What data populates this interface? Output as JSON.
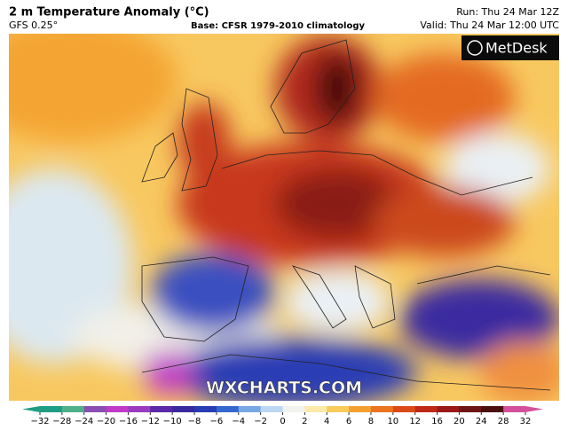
{
  "header": {
    "title": "2 m Temperature Anomaly (°C)",
    "model": "GFS 0.25°",
    "base": "Base: CFSR 1979-2010 climatology",
    "run": "Run: Thu 24 Mar 12Z",
    "valid": "Valid: Thu 24 Mar 12:00 UTC"
  },
  "logo": "MetDesk",
  "watermark": "WXCHARTS.COM",
  "colorbar": {
    "ticks": [
      {
        "value": -32,
        "label": "−32"
      },
      {
        "value": -28,
        "label": "−28"
      },
      {
        "value": -24,
        "label": "−24"
      },
      {
        "value": -20,
        "label": "−20"
      },
      {
        "value": -16,
        "label": "−16"
      },
      {
        "value": -12,
        "label": "−12"
      },
      {
        "value": -10,
        "label": "−10"
      },
      {
        "value": -8,
        "label": "−8"
      },
      {
        "value": -6,
        "label": "−6"
      },
      {
        "value": -4,
        "label": "−4"
      },
      {
        "value": -2,
        "label": "−2"
      },
      0,
      2,
      4,
      6,
      8,
      10,
      12,
      16,
      20,
      24,
      28,
      32
    ],
    "colors": [
      "#1f9e86",
      "#4fb08a",
      "#8a4fb0",
      "#c03cc8",
      "#9a3cc0",
      "#5a2aa8",
      "#3a2aa0",
      "#2a3cb4",
      "#3468d0",
      "#78a8e4",
      "#bcd8f2",
      "#f2f2ee",
      "#fbeaa8",
      "#f8cc5a",
      "#f4a030",
      "#ec7420",
      "#dc4a18",
      "#c02818",
      "#9a1818",
      "#6e1414",
      "#4a1010",
      "#d4509c"
    ]
  }
}
